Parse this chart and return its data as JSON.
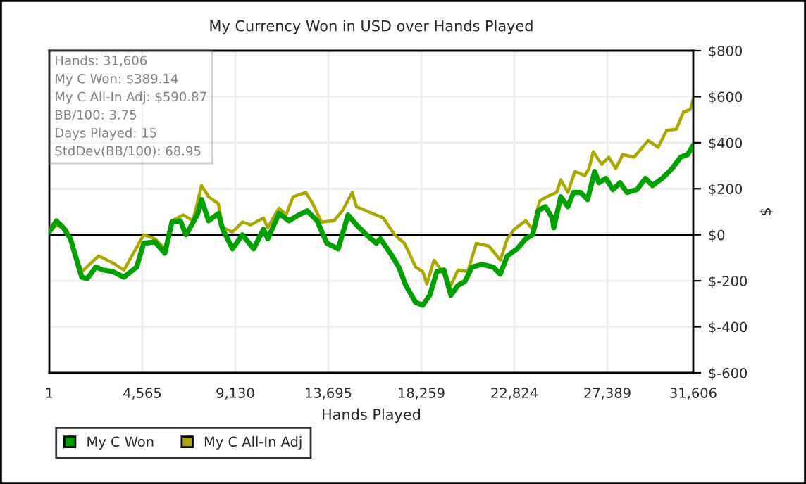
{
  "chart_data": {
    "type": "line",
    "title": "My Currency Won in USD over Hands Played",
    "xlabel": "Hands Played",
    "ylabel": "$",
    "xlim": [
      1,
      31606
    ],
    "xticks": [
      1,
      {
        "value": 4565,
        "label": "4,565"
      },
      {
        "value": 9130,
        "label": "9,130"
      },
      {
        "value": 13695,
        "label": "13,695"
      },
      {
        "value": 18259,
        "label": "18,259"
      },
      {
        "value": 22824,
        "label": "22,824"
      },
      {
        "value": 27389,
        "label": "27,389"
      },
      {
        "value": 31606,
        "label": "31,606"
      }
    ],
    "ylim": [
      -600,
      800
    ],
    "yticks": [
      {
        "value": -600,
        "label": "$-600"
      },
      {
        "value": -400,
        "label": "$-400"
      },
      {
        "value": -200,
        "label": "$-200"
      },
      {
        "value": 0,
        "label": "$0"
      },
      {
        "value": 200,
        "label": "$200"
      },
      {
        "value": 400,
        "label": "$400"
      },
      {
        "value": 600,
        "label": "$600"
      },
      {
        "value": 800,
        "label": "$800"
      }
    ],
    "grid": true,
    "legend": "bottom",
    "marker": "none",
    "line_style": "solid",
    "ref_lines": [
      {
        "axis": "y",
        "value": 0,
        "color": "#000000"
      }
    ],
    "annotations": [
      "Hands: 31,606",
      "My C Won: $389.14",
      "My C All-In Adj: $590.87",
      "BB/100: 3.75",
      "Days Played: 15",
      "StdDev(BB/100): 68.95"
    ],
    "series": [
      {
        "name": "My C Won",
        "color": "#00a000",
        "x": [
          1,
          347,
          693,
          1038,
          1592,
          1868,
          2283,
          2629,
          3113,
          3666,
          4289,
          4634,
          5188,
          5672,
          6018,
          6433,
          6709,
          7263,
          7470,
          7816,
          8300,
          8508,
          8992,
          9476,
          10029,
          10513,
          10721,
          11274,
          11758,
          12243,
          12657,
          13141,
          13625,
          14179,
          14663,
          15078,
          15562,
          16046,
          16253,
          16738,
          17153,
          17499,
          17983,
          18328,
          18674,
          19020,
          19366,
          19712,
          20058,
          20403,
          20749,
          21233,
          21787,
          22133,
          22478,
          22962,
          23377,
          23723,
          24000,
          24345,
          24691,
          24760,
          25106,
          25452,
          25728,
          26074,
          26420,
          26766,
          26973,
          27319,
          27665,
          28011,
          28357,
          28841,
          29256,
          29601,
          30085,
          30570,
          30985,
          31331,
          31606
        ],
        "values": [
          12,
          60,
          30,
          -18,
          -184,
          -190,
          -140,
          -153,
          -160,
          -184,
          -140,
          -37,
          -31,
          -80,
          55,
          61,
          0,
          86,
          153,
          61,
          92,
          24,
          -61,
          0,
          -61,
          24,
          -18,
          92,
          61,
          86,
          104,
          61,
          -37,
          -61,
          86,
          43,
          0,
          -37,
          -18,
          -80,
          -140,
          -220,
          -294,
          -306,
          -263,
          -160,
          -153,
          -263,
          -220,
          -202,
          -140,
          -129,
          -140,
          -171,
          -92,
          -61,
          -18,
          0,
          104,
          122,
          73,
          31,
          165,
          122,
          184,
          184,
          153,
          275,
          226,
          245,
          196,
          226,
          184,
          196,
          245,
          214,
          245,
          288,
          337,
          349,
          389.14
        ]
      },
      {
        "name": "My C All-In Adj",
        "color": "#a8a800",
        "x": [
          1,
          347,
          831,
          1592,
          2421,
          3113,
          3666,
          4634,
          5188,
          5672,
          6018,
          6571,
          7055,
          7470,
          7816,
          8300,
          8508,
          8992,
          9476,
          9891,
          10513,
          10721,
          11274,
          11620,
          11966,
          12588,
          12934,
          13349,
          13971,
          14386,
          14870,
          15078,
          15562,
          16392,
          16945,
          17430,
          17983,
          18328,
          18536,
          18882,
          19228,
          19712,
          20058,
          20542,
          20957,
          21579,
          22133,
          22478,
          22824,
          23377,
          23723,
          24069,
          24415,
          24898,
          25106,
          25452,
          25798,
          26282,
          26490,
          26697,
          27112,
          27458,
          27803,
          28149,
          28703,
          29394,
          29878,
          30293,
          30777,
          31123,
          31469,
          31606
        ],
        "values": [
          12,
          43,
          24,
          -160,
          -92,
          -122,
          -153,
          0,
          -18,
          -61,
          61,
          86,
          61,
          214,
          165,
          135,
          31,
          12,
          55,
          43,
          73,
          31,
          116,
          86,
          165,
          184,
          135,
          55,
          61,
          104,
          184,
          122,
          104,
          73,
          0,
          -37,
          -140,
          -160,
          -214,
          -110,
          -153,
          -220,
          -153,
          -160,
          -37,
          -49,
          -110,
          -18,
          24,
          61,
          24,
          147,
          165,
          184,
          239,
          184,
          275,
          257,
          288,
          361,
          306,
          337,
          288,
          349,
          337,
          410,
          380,
          453,
          459,
          533,
          545,
          590.87
        ]
      }
    ]
  }
}
